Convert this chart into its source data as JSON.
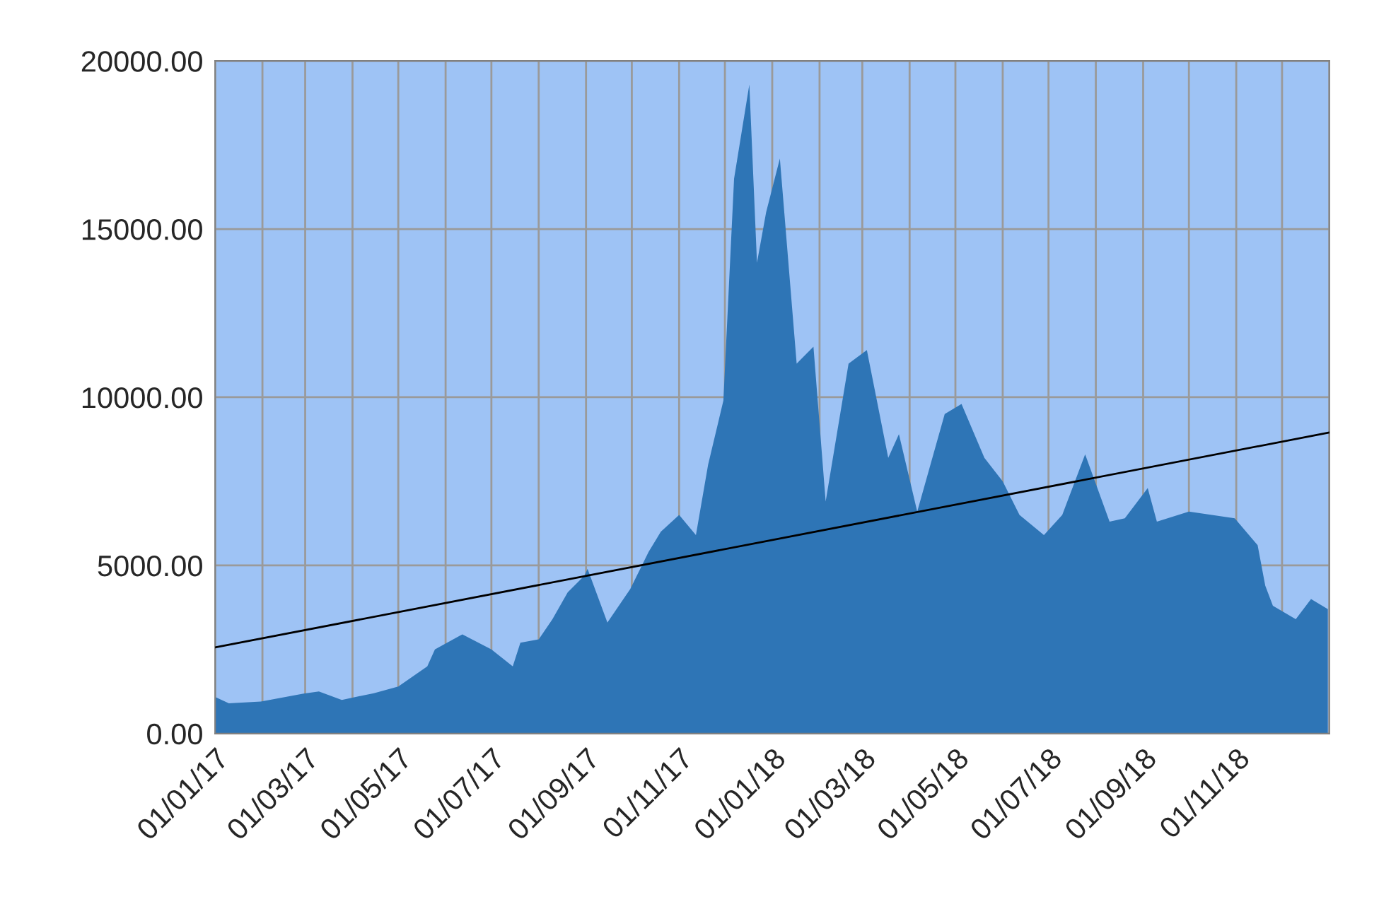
{
  "chart_data": {
    "type": "area",
    "x": [
      "2017-01-01",
      "2017-01-10",
      "2017-01-31",
      "2017-02-28",
      "2017-03-10",
      "2017-03-25",
      "2017-04-15",
      "2017-05-01",
      "2017-05-20",
      "2017-05-25",
      "2017-06-10",
      "2017-06-12",
      "2017-07-01",
      "2017-07-15",
      "2017-07-20",
      "2017-08-01",
      "2017-08-10",
      "2017-08-20",
      "2017-08-31",
      "2017-09-02",
      "2017-09-15",
      "2017-09-30",
      "2017-10-12",
      "2017-10-20",
      "2017-11-01",
      "2017-11-12",
      "2017-11-20",
      "2017-11-30",
      "2017-12-07",
      "2017-12-17",
      "2017-12-22",
      "2017-12-28",
      "2018-01-06",
      "2018-01-17",
      "2018-01-28",
      "2018-02-05",
      "2018-02-20",
      "2018-03-04",
      "2018-03-18",
      "2018-03-25",
      "2018-04-06",
      "2018-04-24",
      "2018-05-05",
      "2018-05-20",
      "2018-06-01",
      "2018-06-12",
      "2018-06-28",
      "2018-07-10",
      "2018-07-25",
      "2018-08-10",
      "2018-08-20",
      "2018-09-04",
      "2018-09-10",
      "2018-10-01",
      "2018-10-31",
      "2018-11-15",
      "2018-11-20",
      "2018-11-25",
      "2018-12-10",
      "2018-12-20",
      "2018-12-31"
    ],
    "series": [
      {
        "color": "#2e75b6",
        "values": [
          1090,
          900,
          950,
          1190,
          1250,
          1000,
          1200,
          1400,
          2000,
          2500,
          2900,
          2950,
          2500,
          2000,
          2700,
          2800,
          3400,
          4200,
          4700,
          4900,
          3300,
          4300,
          5400,
          6000,
          6500,
          5900,
          8000,
          9900,
          16500,
          19300,
          14000,
          15500,
          17100,
          11000,
          11500,
          6900,
          11000,
          11400,
          8200,
          8900,
          6600,
          9500,
          9800,
          8200,
          7500,
          6500,
          5900,
          6500,
          8300,
          6300,
          6400,
          7300,
          6300,
          6600,
          6400,
          5600,
          4400,
          3800,
          3400,
          4000,
          3700
        ]
      },
      {
        "type": "line",
        "color": "#000000",
        "x": [
          "2017-01-01",
          "2019-01-01"
        ],
        "values": [
          2560,
          8950
        ]
      }
    ],
    "xlim": [
      "2017-01-01",
      "2019-01-01"
    ],
    "xticks": [
      {
        "value": "2017-01-01",
        "label": "01/01/17"
      },
      {
        "value": "2017-02-01",
        "label": null
      },
      {
        "value": "2017-03-01",
        "label": "01/03/17"
      },
      {
        "value": "2017-04-01",
        "label": null
      },
      {
        "value": "2017-05-01",
        "label": "01/05/17"
      },
      {
        "value": "2017-06-01",
        "label": null
      },
      {
        "value": "2017-07-01",
        "label": "01/07/17"
      },
      {
        "value": "2017-08-01",
        "label": null
      },
      {
        "value": "2017-09-01",
        "label": "01/09/17"
      },
      {
        "value": "2017-10-01",
        "label": null
      },
      {
        "value": "2017-11-01",
        "label": "01/11/17"
      },
      {
        "value": "2017-12-01",
        "label": null
      },
      {
        "value": "2018-01-01",
        "label": "01/01/18"
      },
      {
        "value": "2018-02-01",
        "label": null
      },
      {
        "value": "2018-03-01",
        "label": "01/03/18"
      },
      {
        "value": "2018-04-01",
        "label": null
      },
      {
        "value": "2018-05-01",
        "label": "01/05/18"
      },
      {
        "value": "2018-06-01",
        "label": null
      },
      {
        "value": "2018-07-01",
        "label": "01/07/18"
      },
      {
        "value": "2018-08-01",
        "label": null
      },
      {
        "value": "2018-09-01",
        "label": "01/09/18"
      },
      {
        "value": "2018-10-01",
        "label": null
      },
      {
        "value": "2018-11-01",
        "label": "01/11/18"
      },
      {
        "value": "2018-12-01",
        "label": null
      },
      {
        "value": "2019-01-01",
        "label": null
      }
    ],
    "ylim": [
      0,
      20000
    ],
    "yticks": [
      {
        "value": 0,
        "label": "0.00"
      },
      {
        "value": 5000,
        "label": "5000.00"
      },
      {
        "value": 10000,
        "label": "10000.00"
      },
      {
        "value": 15000,
        "label": "15000.00"
      },
      {
        "value": 20000,
        "label": "20000.00"
      }
    ],
    "grid": true,
    "legend": false
  }
}
